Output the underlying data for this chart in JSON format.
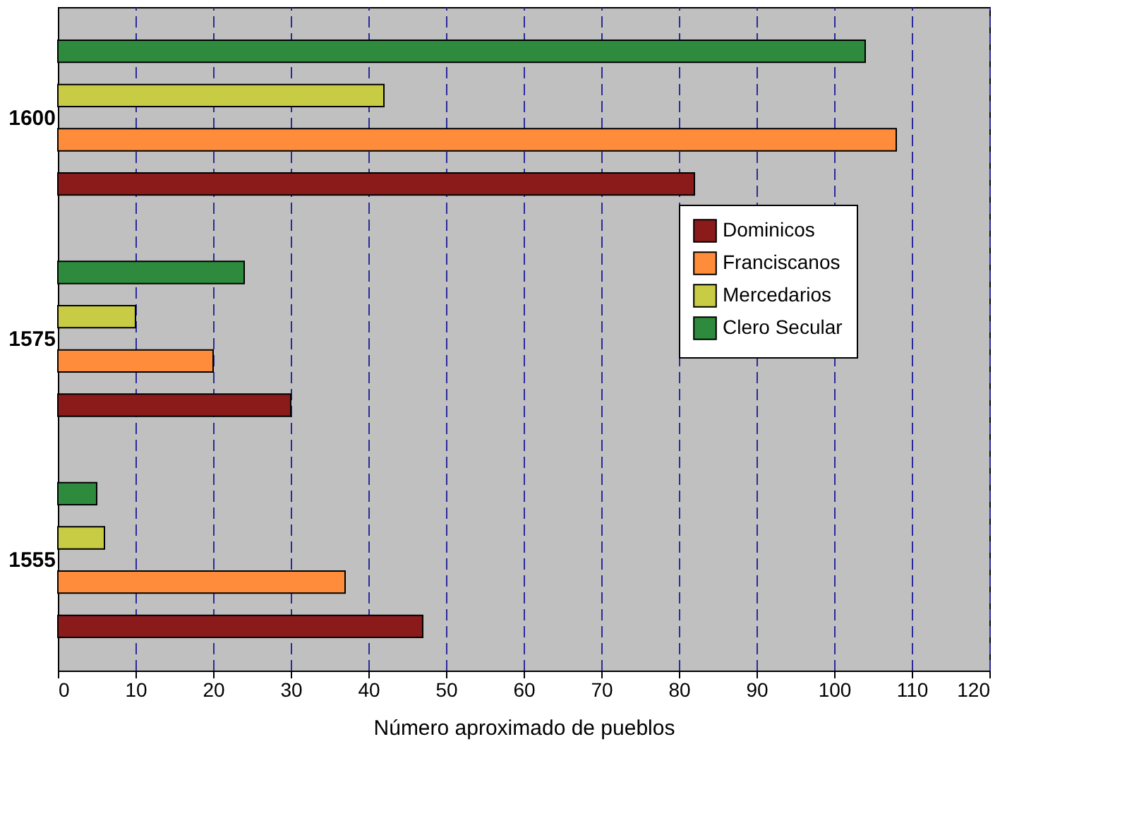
{
  "chart_data": {
    "type": "bar",
    "orientation": "horizontal",
    "categories": [
      "1600",
      "1575",
      "1555"
    ],
    "xlabel": "Número aproximado de pueblos",
    "xlim": [
      0,
      120
    ],
    "xticks": [
      0,
      10,
      20,
      30,
      40,
      50,
      60,
      70,
      80,
      90,
      100,
      110,
      120
    ],
    "grid": "x",
    "legend": "right",
    "series": [
      {
        "name": "Dominicos",
        "color": "#8b1a1a",
        "values": [
          82,
          30,
          47
        ]
      },
      {
        "name": "Franciscanos",
        "color": "#ff8c3a",
        "values": [
          108,
          20,
          37
        ]
      },
      {
        "name": "Mercedarios",
        "color": "#c8cc44",
        "values": [
          42,
          10,
          6
        ]
      },
      {
        "name": "Clero Secular",
        "color": "#2e8b3e",
        "values": [
          104,
          24,
          5
        ]
      }
    ]
  }
}
